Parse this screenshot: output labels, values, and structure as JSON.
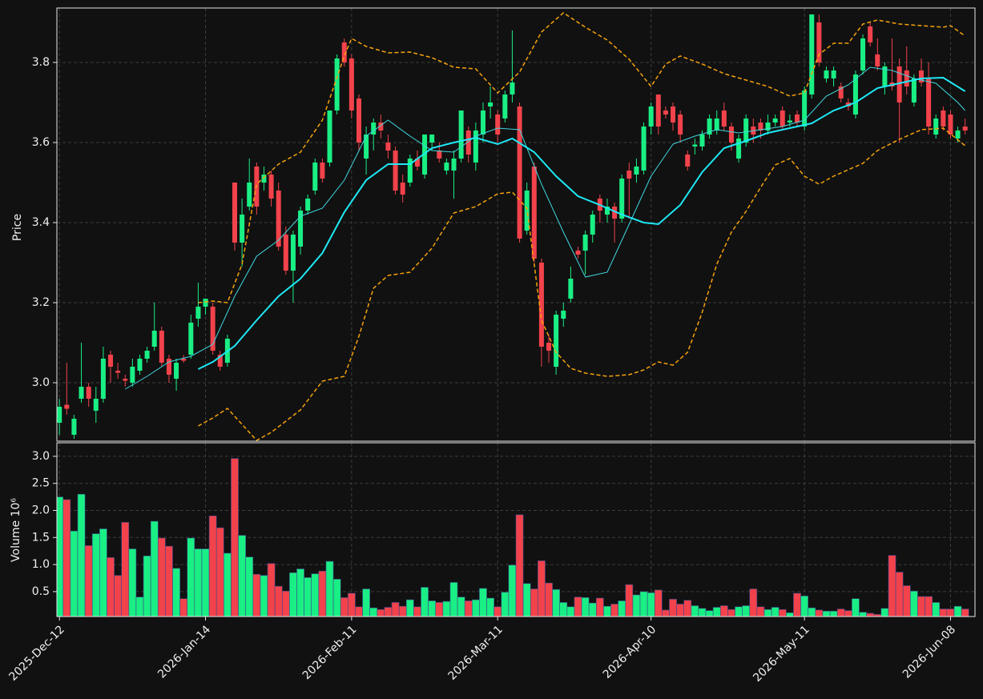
{
  "chart_data": {
    "type": "candlestick",
    "ylabel": "Price",
    "volume_ylabel": "Volume  10⁶",
    "up_color": "#19ef84",
    "down_color": "#f2424b",
    "grid": true,
    "xlim": [
      -0.35,
      125.35
    ],
    "xticks": [
      {
        "value": 0,
        "label": "2025-Dec-12"
      },
      {
        "value": 20,
        "label": "2026-Jan-14"
      },
      {
        "value": 40,
        "label": "2026-Feb-11"
      },
      {
        "value": 60,
        "label": "2026-Mar-11"
      },
      {
        "value": 81,
        "label": "2026-Apr-10"
      },
      {
        "value": 102,
        "label": "2026-May-11"
      },
      {
        "value": 122,
        "label": "2026-Jun-08"
      }
    ],
    "ylim": [
      2.854,
      3.936
    ],
    "yticks": [
      {
        "value": 3.0,
        "label": "3.0"
      },
      {
        "value": 3.2,
        "label": "3.2"
      },
      {
        "value": 3.4,
        "label": "3.4"
      },
      {
        "value": 3.6,
        "label": "3.6"
      },
      {
        "value": 3.8,
        "label": "3.8"
      }
    ],
    "volume_ylim": [
      0.04,
      3.25
    ],
    "volume_yticks": [
      0.5,
      {
        "value": 1.0,
        "label": "1.0"
      },
      1.5,
      {
        "value": 2.0,
        "label": "2.0"
      },
      2.5,
      {
        "value": 3.0,
        "label": "3.0"
      }
    ],
    "open": [
      2.9,
      2.945,
      2.87,
      2.96,
      2.99,
      2.93,
      2.96,
      3.07,
      3.03,
      3.01,
      3.0,
      3.03,
      3.06,
      3.09,
      3.13,
      3.06,
      3.01,
      3.06,
      3.07,
      3.16,
      3.19,
      3.19,
      3.07,
      3.05,
      3.5,
      3.35,
      3.44,
      3.54,
      3.5,
      3.52,
      3.48,
      3.37,
      3.28,
      3.34,
      3.43,
      3.48,
      3.55,
      3.55,
      3.68,
      3.85,
      3.81,
      3.71,
      3.56,
      3.62,
      3.65,
      3.6,
      3.58,
      3.5,
      3.5,
      3.56,
      3.52,
      3.6,
      3.58,
      3.53,
      3.53,
      3.56,
      3.63,
      3.55,
      3.62,
      3.69,
      3.67,
      3.66,
      3.72,
      3.69,
      3.38,
      3.54,
      3.3,
      3.1,
      3.04,
      3.16,
      3.21,
      3.33,
      3.33,
      3.37,
      3.46,
      3.42,
      3.44,
      3.41,
      3.53,
      3.52,
      3.53,
      3.64,
      3.72,
      3.68,
      3.69,
      3.67,
      3.57,
      3.59,
      3.59,
      3.62,
      3.63,
      3.68,
      3.64,
      3.56,
      3.6,
      3.64,
      3.65,
      3.63,
      3.65,
      3.68,
      3.65,
      3.67,
      3.64,
      3.72,
      3.9,
      3.76,
      3.76,
      3.74,
      3.7,
      3.67,
      3.78,
      3.89,
      3.82,
      3.74,
      3.75,
      3.79,
      3.78,
      3.7,
      3.78,
      3.76,
      3.62,
      3.68,
      3.67,
      3.61,
      3.64
    ],
    "high": [
      2.96,
      3.05,
      2.92,
      3.1,
      3.0,
      2.99,
      3.09,
      3.08,
      3.05,
      3.02,
      3.06,
      3.07,
      3.09,
      3.2,
      3.14,
      3.07,
      3.06,
      3.07,
      3.17,
      3.25,
      3.21,
      3.2,
      3.08,
      3.12,
      3.5,
      3.46,
      3.56,
      3.55,
      3.54,
      3.53,
      3.5,
      3.39,
      3.38,
      3.44,
      3.47,
      3.56,
      3.56,
      3.68,
      3.82,
      3.86,
      3.82,
      3.72,
      3.64,
      3.66,
      3.67,
      3.62,
      3.59,
      3.52,
      3.57,
      3.58,
      3.62,
      3.62,
      3.6,
      3.56,
      3.58,
      3.68,
      3.64,
      3.65,
      3.7,
      3.74,
      3.68,
      3.73,
      3.88,
      3.7,
      3.5,
      3.55,
      3.31,
      3.12,
      3.18,
      3.2,
      3.29,
      3.34,
      3.38,
      3.43,
      3.47,
      3.46,
      3.45,
      3.52,
      3.55,
      3.56,
      3.65,
      3.7,
      3.72,
      3.69,
      3.7,
      3.68,
      3.58,
      3.61,
      3.63,
      3.67,
      3.68,
      3.7,
      3.65,
      3.62,
      3.67,
      3.66,
      3.66,
      3.67,
      3.67,
      3.69,
      3.67,
      3.68,
      3.74,
      3.92,
      3.92,
      3.79,
      3.79,
      3.75,
      3.71,
      3.78,
      3.87,
      3.9,
      3.86,
      3.8,
      3.86,
      3.81,
      3.84,
      3.77,
      3.81,
      3.8,
      3.67,
      3.69,
      3.68,
      3.64,
      3.66
    ],
    "low": [
      2.87,
      2.92,
      2.86,
      2.95,
      2.94,
      2.9,
      2.95,
      3.0,
      3.01,
      2.99,
      2.99,
      3.02,
      3.05,
      3.08,
      3.04,
      3.0,
      2.98,
      3.05,
      3.06,
      3.14,
      3.17,
      3.07,
      3.03,
      3.04,
      3.33,
      3.29,
      3.43,
      3.42,
      3.48,
      3.44,
      3.33,
      3.27,
      3.2,
      3.32,
      3.42,
      3.47,
      3.5,
      3.54,
      3.67,
      3.79,
      3.66,
      3.58,
      3.52,
      3.58,
      3.61,
      3.56,
      3.47,
      3.45,
      3.49,
      3.53,
      3.51,
      3.58,
      3.55,
      3.52,
      3.46,
      3.55,
      3.55,
      3.53,
      3.6,
      3.66,
      3.6,
      3.65,
      3.7,
      3.35,
      3.37,
      3.3,
      3.04,
      3.05,
      3.02,
      3.14,
      3.2,
      3.31,
      3.27,
      3.35,
      3.4,
      3.4,
      3.35,
      3.4,
      3.41,
      3.5,
      3.52,
      3.62,
      3.62,
      3.66,
      3.63,
      3.6,
      3.53,
      3.57,
      3.58,
      3.61,
      3.62,
      3.63,
      3.58,
      3.55,
      3.59,
      3.6,
      3.61,
      3.62,
      3.64,
      3.63,
      3.64,
      3.64,
      3.63,
      3.71,
      3.79,
      3.75,
      3.74,
      3.7,
      3.68,
      3.66,
      3.77,
      3.84,
      3.78,
      3.72,
      3.73,
      3.6,
      3.72,
      3.69,
      3.74,
      3.62,
      3.61,
      3.63,
      3.61,
      3.6,
      3.62
    ],
    "close": [
      2.94,
      2.935,
      2.91,
      2.99,
      2.96,
      2.96,
      3.06,
      3.04,
      3.025,
      3.005,
      3.04,
      3.06,
      3.08,
      3.13,
      3.05,
      3.02,
      3.05,
      3.055,
      3.15,
      3.19,
      3.21,
      3.08,
      3.04,
      3.11,
      3.35,
      3.42,
      3.5,
      3.44,
      3.52,
      3.46,
      3.34,
      3.28,
      3.37,
      3.43,
      3.46,
      3.55,
      3.51,
      3.68,
      3.81,
      3.8,
      3.68,
      3.6,
      3.62,
      3.65,
      3.63,
      3.58,
      3.48,
      3.47,
      3.56,
      3.54,
      3.62,
      3.62,
      3.56,
      3.55,
      3.56,
      3.68,
      3.57,
      3.63,
      3.68,
      3.7,
      3.62,
      3.72,
      3.75,
      3.36,
      3.48,
      3.31,
      3.09,
      3.08,
      3.17,
      3.18,
      3.26,
      3.32,
      3.37,
      3.42,
      3.43,
      3.44,
      3.41,
      3.51,
      3.51,
      3.54,
      3.64,
      3.69,
      3.64,
      3.67,
      3.65,
      3.62,
      3.54,
      3.595,
      3.62,
      3.66,
      3.66,
      3.64,
      3.6,
      3.61,
      3.66,
      3.62,
      3.63,
      3.65,
      3.66,
      3.64,
      3.655,
      3.65,
      3.73,
      3.92,
      3.8,
      3.78,
      3.78,
      3.71,
      3.69,
      3.77,
      3.86,
      3.85,
      3.79,
      3.79,
      3.74,
      3.7,
      3.74,
      3.76,
      3.75,
      3.64,
      3.66,
      3.64,
      3.62,
      3.63,
      3.63
    ],
    "volume": [
      2.25,
      2.2,
      1.62,
      2.3,
      1.35,
      1.57,
      1.66,
      1.13,
      0.8,
      1.78,
      1.29,
      0.4,
      1.16,
      1.8,
      1.49,
      1.34,
      0.93,
      0.37,
      1.49,
      1.29,
      1.29,
      1.9,
      1.68,
      1.21,
      2.96,
      1.54,
      1.14,
      0.82,
      0.8,
      1.02,
      0.6,
      0.51,
      0.85,
      0.92,
      0.76,
      0.83,
      0.88,
      1.06,
      0.73,
      0.39,
      0.47,
      0.22,
      0.55,
      0.2,
      0.17,
      0.21,
      0.3,
      0.23,
      0.35,
      0.22,
      0.58,
      0.33,
      0.3,
      0.32,
      0.67,
      0.4,
      0.33,
      0.35,
      0.56,
      0.38,
      0.22,
      0.49,
      0.99,
      1.92,
      0.65,
      0.55,
      1.07,
      0.66,
      0.54,
      0.3,
      0.22,
      0.4,
      0.39,
      0.29,
      0.38,
      0.23,
      0.27,
      0.33,
      0.63,
      0.44,
      0.5,
      0.48,
      0.53,
      0.16,
      0.36,
      0.27,
      0.34,
      0.24,
      0.19,
      0.15,
      0.21,
      0.24,
      0.17,
      0.22,
      0.24,
      0.55,
      0.22,
      0.17,
      0.21,
      0.17,
      0.11,
      0.47,
      0.42,
      0.2,
      0.16,
      0.14,
      0.14,
      0.18,
      0.15,
      0.37,
      0.12,
      0.1,
      0.08,
      0.19,
      1.17,
      0.86,
      0.61,
      0.51,
      0.41,
      0.41,
      0.3,
      0.18,
      0.18,
      0.23,
      0.18
    ],
    "overlays": [
      {
        "color": "#3fd8e0",
        "width": 1,
        "dash": false,
        "x": [
          9,
          12,
          15,
          18,
          21,
          24,
          27,
          30,
          33,
          36,
          39,
          42,
          45,
          48,
          51,
          54,
          57,
          60,
          63,
          66,
          69,
          72,
          75,
          78,
          81,
          84,
          87,
          90,
          93,
          96,
          99,
          102,
          105,
          108,
          111,
          114,
          117,
          120,
          123,
          124
        ],
        "values": [
          2.984,
          3.016,
          3.052,
          3.066,
          3.096,
          3.216,
          3.316,
          3.356,
          3.416,
          3.436,
          3.506,
          3.616,
          3.656,
          3.616,
          3.58,
          3.576,
          3.616,
          3.636,
          3.632,
          3.496,
          3.376,
          3.264,
          3.276,
          3.396,
          3.516,
          3.596,
          3.616,
          3.632,
          3.624,
          3.632,
          3.64,
          3.656,
          3.716,
          3.744,
          3.788,
          3.78,
          3.76,
          3.748,
          3.7,
          3.68
        ]
      },
      {
        "color": "#1ee8f5",
        "width": 2,
        "dash": false,
        "x": [
          19,
          21,
          24,
          27,
          30,
          33,
          36,
          39,
          42,
          45,
          48,
          51,
          54,
          57,
          60,
          62,
          65,
          68,
          71,
          74,
          77,
          80,
          82,
          85,
          88,
          91,
          94,
          97,
          100,
          103,
          106,
          109,
          112,
          115,
          118,
          121,
          124
        ],
        "values": [
          3.034,
          3.052,
          3.092,
          3.156,
          3.216,
          3.26,
          3.324,
          3.426,
          3.506,
          3.546,
          3.546,
          3.586,
          3.6,
          3.612,
          3.596,
          3.61,
          3.576,
          3.516,
          3.466,
          3.444,
          3.42,
          3.4,
          3.396,
          3.444,
          3.526,
          3.586,
          3.604,
          3.624,
          3.636,
          3.648,
          3.68,
          3.7,
          3.736,
          3.748,
          3.76,
          3.762,
          3.728
        ]
      },
      {
        "color": "#f5a20c",
        "width": 1.5,
        "dash": true,
        "x": [
          19,
          21,
          23,
          25,
          27,
          30,
          33,
          36,
          39,
          40,
          42,
          45,
          48,
          51,
          54,
          57,
          60,
          63,
          66,
          69,
          72,
          75,
          78,
          81,
          83,
          85,
          88,
          91,
          94,
          97,
          100,
          102,
          104,
          106,
          108,
          110,
          112,
          115,
          118,
          121,
          122,
          124
        ],
        "values": [
          3.2,
          3.204,
          3.2,
          3.296,
          3.496,
          3.546,
          3.576,
          3.656,
          3.816,
          3.86,
          3.84,
          3.824,
          3.826,
          3.812,
          3.788,
          3.784,
          3.724,
          3.776,
          3.876,
          3.924,
          3.888,
          3.856,
          3.808,
          3.74,
          3.796,
          3.816,
          3.796,
          3.772,
          3.756,
          3.74,
          3.716,
          3.724,
          3.82,
          3.848,
          3.848,
          3.896,
          3.906,
          3.896,
          3.892,
          3.888,
          3.892,
          3.866
        ]
      },
      {
        "color": "#f5a20c",
        "width": 1.5,
        "dash": true,
        "x": [
          19,
          21,
          23,
          25,
          27,
          29,
          31,
          33,
          36,
          39,
          41,
          43,
          45,
          48,
          51,
          54,
          57,
          60,
          62,
          64,
          66,
          68,
          70,
          72,
          75,
          78,
          80,
          82,
          84,
          86,
          88,
          90,
          92,
          94,
          96,
          98,
          100,
          102,
          104,
          106,
          108,
          110,
          112,
          115,
          118,
          121,
          124
        ],
        "values": [
          2.892,
          2.912,
          2.936,
          2.896,
          2.856,
          2.876,
          2.904,
          2.932,
          3.004,
          3.016,
          3.116,
          3.236,
          3.268,
          3.276,
          3.336,
          3.424,
          3.44,
          3.472,
          3.476,
          3.436,
          3.156,
          3.076,
          3.036,
          3.024,
          3.016,
          3.02,
          3.032,
          3.052,
          3.044,
          3.076,
          3.176,
          3.296,
          3.376,
          3.428,
          3.488,
          3.544,
          3.56,
          3.516,
          3.496,
          3.516,
          3.532,
          3.548,
          3.58,
          3.608,
          3.632,
          3.636,
          3.592
        ]
      }
    ]
  }
}
